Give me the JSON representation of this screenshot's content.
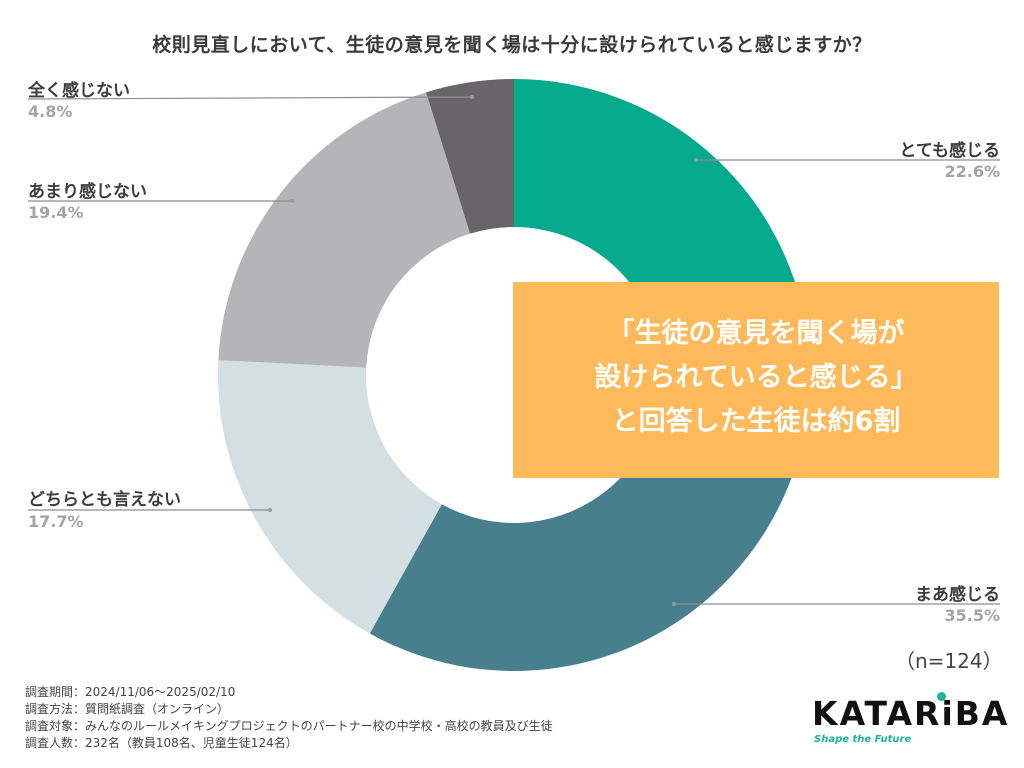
{
  "title": "校則見直しにおいて、生徒の意見を聞く場は十分に設けられていると感じますか？",
  "chart_data": {
    "type": "pie",
    "subtype": "donut",
    "title": "校則見直しにおいて、生徒の意見を聞く場は十分に設けられていると感じますか？",
    "categories": [
      "とても感じる",
      "まあ感じる",
      "どちらとも言えない",
      "あまり感じない",
      "全く感じない"
    ],
    "values": [
      22.6,
      35.5,
      17.7,
      19.4,
      4.8
    ],
    "unit": "%",
    "colors": [
      "#05aa8c",
      "#477f8c",
      "#d4dfe3",
      "#b5b4b7",
      "#676567"
    ],
    "start_angle": "top, clockwise",
    "n": 124
  },
  "slices": [
    {
      "label": "とても感じる",
      "pct": "22.6%"
    },
    {
      "label": "まあ感じる",
      "pct": "35.5%"
    },
    {
      "label": "どちらとも言えない",
      "pct": "17.7%"
    },
    {
      "label": "あまり感じない",
      "pct": "19.4%"
    },
    {
      "label": "全く感じない",
      "pct": "4.8%"
    }
  ],
  "callout": {
    "line1": "「生徒の意見を聞く場が",
    "line2": "設けられていると感じる」",
    "line3": "と回答した生徒は約6割",
    "color": "#fdb95a"
  },
  "n_label": "（n=124）",
  "notes": [
    "調査期間：2024/11/06〜2025/02/10",
    "調査方法：質問紙調査（オンライン）",
    "調査対象：みんなのルールメイキングプロジェクトのパートナー校の中学校・高校の教員及び生徒",
    "調査人数：232名（教員108名、児童生徒124名）"
  ],
  "logo": {
    "name": "KATARiBA",
    "tagline": "Shape the Future"
  }
}
